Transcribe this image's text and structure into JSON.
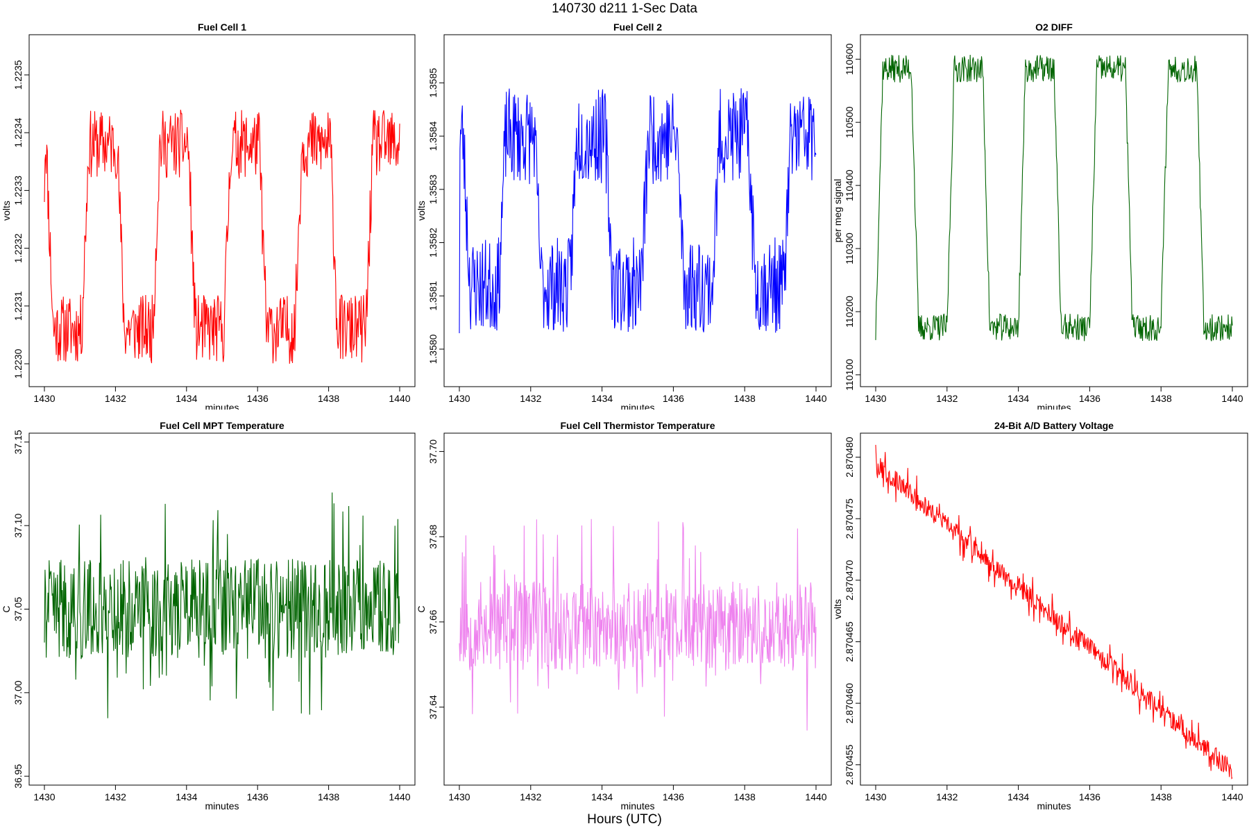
{
  "figure": {
    "title": "140730   d211   1-Sec Data",
    "xlabel": "Hours (UTC)"
  },
  "chart_data": [
    {
      "type": "line",
      "title": "Fuel Cell 1",
      "xlabel": "minutes",
      "ylabel": "volts",
      "color": "#ff0000",
      "xlim": [
        1430,
        1440
      ],
      "xticks": [
        1430,
        1432,
        1434,
        1436,
        1438,
        1440
      ],
      "ylim": [
        1.22297,
        1.22356
      ],
      "yticks": [
        1.223,
        1.2231,
        1.2232,
        1.2233,
        1.2234,
        1.2235
      ],
      "ytick_labels": [
        "1.2230",
        "1.2231",
        "1.2232",
        "1.2233",
        "1.2234",
        "1.2235"
      ],
      "pattern": "square",
      "period_min": 2.0,
      "phase_min": 1.05,
      "base": 1.22306,
      "amp": 0.00032,
      "noise": 6e-05,
      "trend": 0,
      "start": 1.22328,
      "seed": 11
    },
    {
      "type": "line",
      "title": "Fuel Cell 2",
      "xlabel": "minutes",
      "ylabel": "volts",
      "color": "#0000ff",
      "xlim": [
        1430,
        1440
      ],
      "xticks": [
        1430,
        1432,
        1434,
        1436,
        1438,
        1440
      ],
      "ylim": [
        1.35794,
        1.35858
      ],
      "yticks": [
        1.358,
        1.3581,
        1.3582,
        1.3583,
        1.3584,
        1.3585
      ],
      "ytick_labels": [
        "1.3580",
        "1.3581",
        "1.3582",
        "1.3583",
        "1.3584",
        "1.3585"
      ],
      "pattern": "square",
      "period_min": 2.0,
      "phase_min": 1.1,
      "base": 1.35812,
      "amp": 0.00028,
      "noise": 9e-05,
      "trend": 0,
      "start": 1.35803,
      "seed": 23
    },
    {
      "type": "line",
      "title": "O2 DIFF",
      "xlabel": "minutes",
      "ylabel": "per meg signal",
      "color": "#006400",
      "xlim": [
        1430,
        1440
      ],
      "xticks": [
        1430,
        1432,
        1434,
        1436,
        1438,
        1440
      ],
      "ylim": [
        110090,
        110630
      ],
      "yticks": [
        110100,
        110200,
        110300,
        110400,
        110500,
        110600
      ],
      "ytick_labels": [
        "110100",
        "110200",
        "110300",
        "110400",
        "110500",
        "110600"
      ],
      "pattern": "square_rise",
      "period_min": 2.0,
      "phase_min": 0.0,
      "base": 110175,
      "amp": 410,
      "noise": 22,
      "trend": 0,
      "start": 110155,
      "seed": 37
    },
    {
      "type": "line",
      "title": "Fuel Cell MPT Temperature",
      "xlabel": "minutes",
      "ylabel": "C",
      "color": "#006400",
      "xlim": [
        1430,
        1440
      ],
      "xticks": [
        1430,
        1432,
        1434,
        1436,
        1438,
        1440
      ],
      "ylim": [
        36.948,
        37.152
      ],
      "yticks": [
        36.95,
        37.0,
        37.05,
        37.1,
        37.15
      ],
      "ytick_labels": [
        "36.95",
        "37.00",
        "37.05",
        "37.10",
        "37.15"
      ],
      "pattern": "noise",
      "base": 37.05,
      "noise": 0.03,
      "trend": 0,
      "start": 37.03,
      "seed": 41
    },
    {
      "type": "line",
      "title": "Fuel Cell Thermistor Temperature",
      "xlabel": "minutes",
      "ylabel": "C",
      "color": "#ee82ee",
      "xlim": [
        1430,
        1440
      ],
      "xticks": [
        1430,
        1432,
        1434,
        1436,
        1438,
        1440
      ],
      "ylim": [
        37.623,
        37.703
      ],
      "yticks": [
        37.64,
        37.66,
        37.68,
        37.7
      ],
      "ytick_labels": [
        "37.64",
        "37.66",
        "37.68",
        "37.70"
      ],
      "pattern": "noise",
      "base": 37.659,
      "noise": 0.0105,
      "trend": 0,
      "start": 37.655,
      "seed": 53
    },
    {
      "type": "line",
      "title": "24-Bit A/D Battery Voltage",
      "xlabel": "minutes",
      "ylabel": "volts",
      "color": "#ff0000",
      "xlim": [
        1430,
        1440
      ],
      "xticks": [
        1430,
        1432,
        1434,
        1436,
        1438,
        1440
      ],
      "ylim": [
        2.8704538,
        2.8704815
      ],
      "yticks": [
        2.870455,
        2.87046,
        2.870465,
        2.87047,
        2.870475,
        2.87048
      ],
      "ytick_labels": [
        "2.870455",
        "2.870460",
        "2.870465",
        "2.870470",
        "2.870475",
        "2.870480"
      ],
      "pattern": "noise",
      "base": 2.8704795,
      "noise": 8e-07,
      "trend": -2.5e-06,
      "start": 2.870481,
      "seed": 67
    }
  ]
}
